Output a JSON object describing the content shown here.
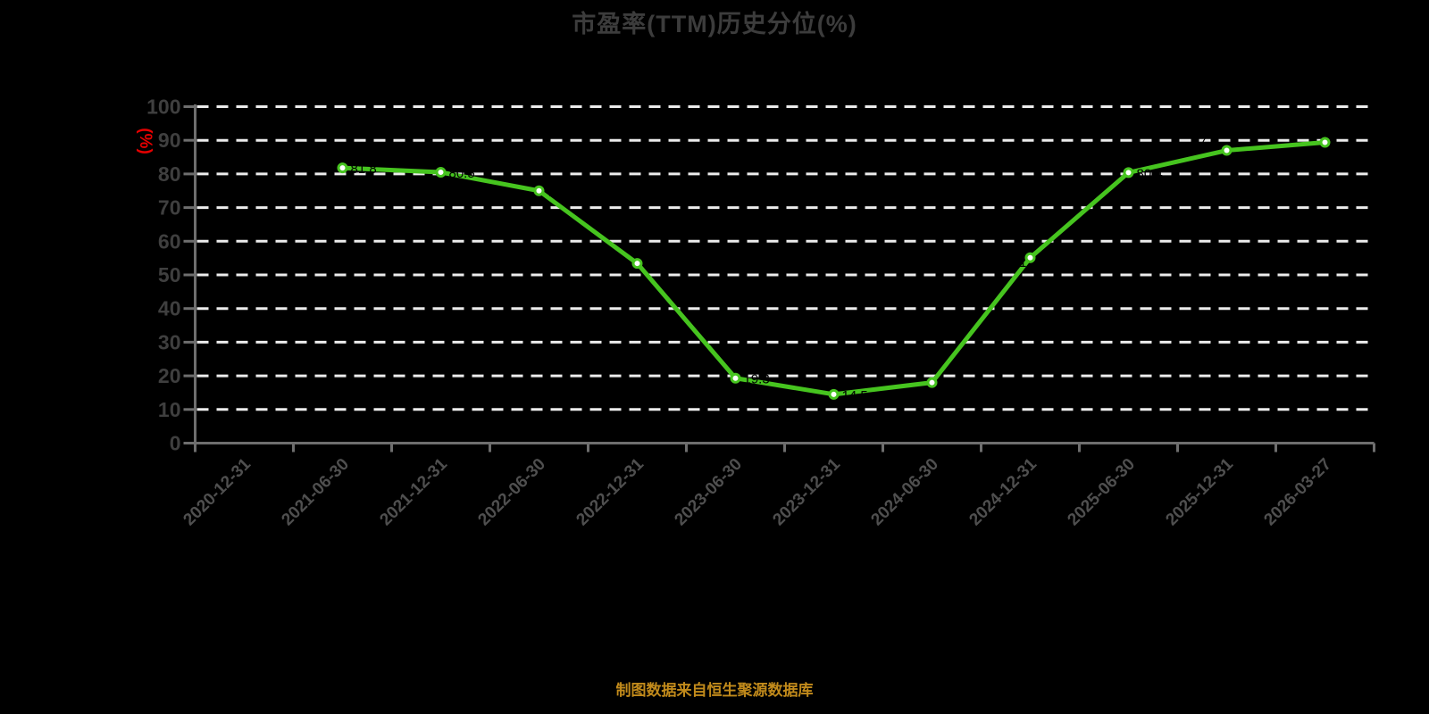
{
  "caption": "制图数据来自恒生聚源数据库",
  "chart_data": {
    "type": "line",
    "title": "市盈率(TTM)历史分位(%)",
    "ylabel": "(%)",
    "xlabel": "",
    "ylim": [
      0,
      100
    ],
    "y_ticks": [
      0,
      10,
      20,
      30,
      40,
      50,
      60,
      70,
      80,
      90,
      100
    ],
    "grid": "horizontal white dashed lines at every 10 units",
    "legend": "none",
    "x_tick_label_rotation": 45,
    "categories": [
      "2020-12-31",
      "2021-06-30",
      "2021-12-31",
      "2022-06-30",
      "2022-12-31",
      "2023-06-30",
      "2023-12-31",
      "2024-06-30",
      "2024-12-31",
      "2025-06-30",
      "2025-12-31",
      "2026-03-27"
    ],
    "series": [
      {
        "name": "市盈率(TTM)历史分位(%)",
        "values": [
          null,
          81.8,
          80.5,
          75.0,
          53.4,
          19.3,
          14.5,
          18.0,
          55.1,
          80.4,
          87.0,
          89.4
        ]
      }
    ],
    "point_labels": [
      "",
      "81.8",
      "80.5",
      "75.0",
      "53.4",
      "19.3",
      "14.5",
      "18.0",
      "55.1",
      "80.4",
      "87.0",
      "89.4"
    ],
    "colors": {
      "background": "#000000",
      "line": "#46c41f",
      "marker_fill": "#ffffff",
      "marker_stroke": "#46c41f",
      "gridline": "#ececec",
      "axis": "#6e6e6e",
      "title": "#3c3c3c",
      "y_tick_label": "#3f3f3f",
      "x_tick_label": "#4f4f4f",
      "y_unit_label": "#e60000",
      "point_label": "#000000",
      "caption": "#c18a1b"
    }
  }
}
